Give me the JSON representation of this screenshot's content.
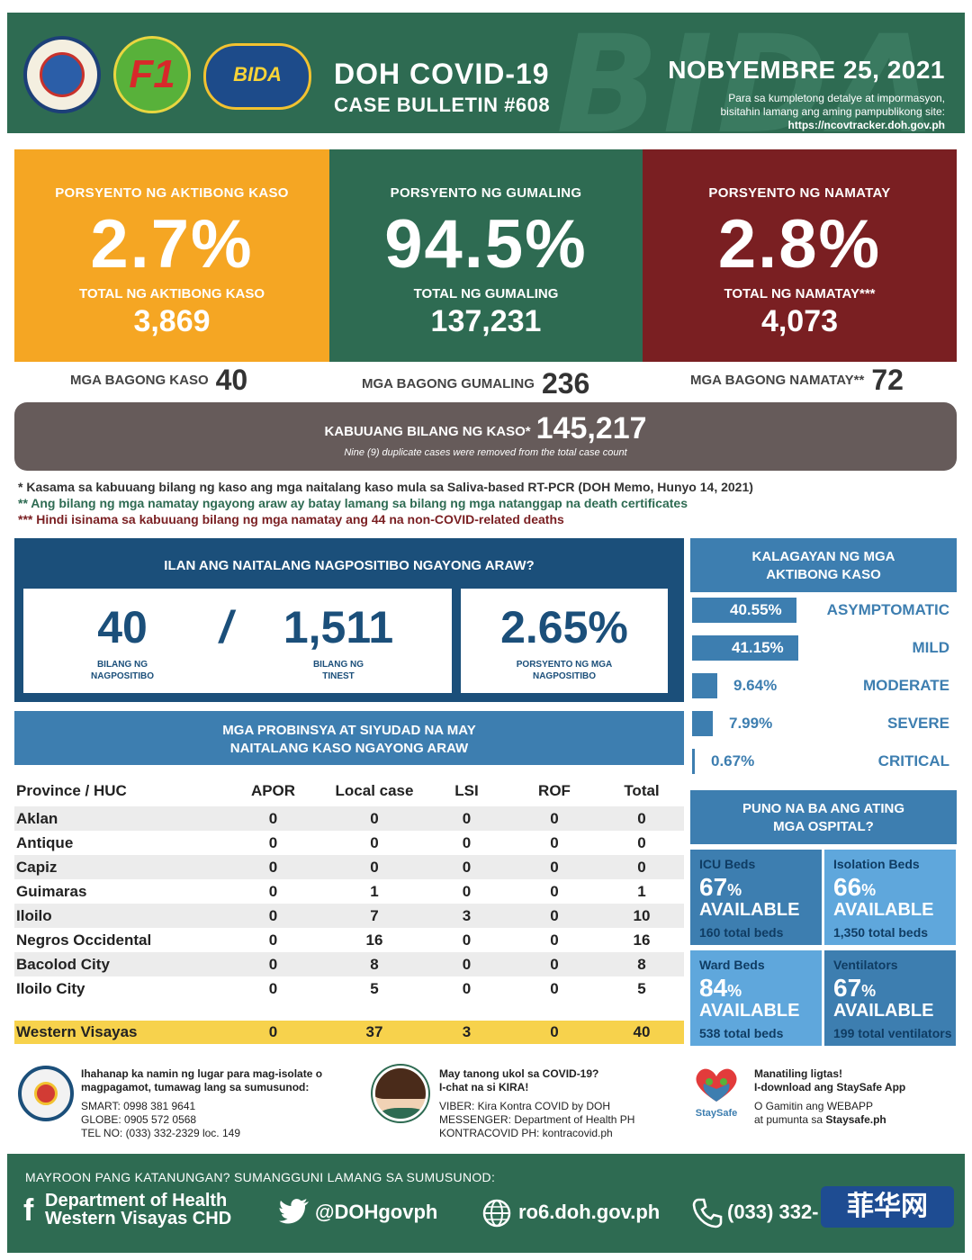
{
  "header": {
    "title_line1": "DOH COVID-19",
    "title_line2": "CASE BULLETIN #608",
    "date": "NOBYEMBRE 25, 2021",
    "note_line1": "Para sa kumpletong detalye at impormasyon,",
    "note_line2": "bisitahin lamang ang aming pampublikong site:",
    "site": "https://ncovtracker.doh.gov.ph",
    "bg_word": "BIDA",
    "logo_f1": "F1",
    "logo_bida": "BIDA"
  },
  "stats": {
    "active": {
      "label": "PORSYENTO NG AKTIBONG KASO",
      "pct": "2.7%",
      "sublabel": "TOTAL  NG AKTIBONG KASO",
      "total": "3,869",
      "color": "#f5a623"
    },
    "recovered": {
      "label": "PORSYENTO NG GUMALING",
      "pct": "94.5%",
      "sublabel": "TOTAL  NG GUMALING",
      "total": "137,231",
      "color": "#2e6b52"
    },
    "deaths": {
      "label": "PORSYENTO NG NAMATAY",
      "pct": "2.8%",
      "sublabel": "TOTAL  NG NAMATAY***",
      "total": "4,073",
      "color": "#7a1f22"
    }
  },
  "new": {
    "cases_label": "MGA BAGONG KASO",
    "cases": "40",
    "recovered_label": "MGA BAGONG GUMALING",
    "recovered": "236",
    "deaths_label": "MGA BAGONG NAMATAY**",
    "deaths": "72"
  },
  "total": {
    "label": "KABUUANG BILANG NG KASO*",
    "value": "145,217",
    "note": "Nine (9) duplicate cases were removed from the total case count"
  },
  "footnotes": {
    "fn1": "* Kasama sa kabuuang bilang ng kaso ang mga naitalang kaso mula sa Saliva-based RT-PCR (DOH Memo, Hunyo 14, 2021)",
    "fn2": "** Ang bilang ng mga namatay ngayong araw ay batay lamang sa bilang ng mga natanggap na death certificates",
    "fn3": "*** Hindi isinama sa kabuuang bilang ng mga namatay ang 44 na non-COVID-related deaths"
  },
  "positive": {
    "title": "ILAN ANG NAITALANG NAGPOSITIBO NGAYONG ARAW?",
    "positive_count": "40",
    "positive_label_1": "BILANG NG",
    "positive_label_2": "NAGPOSITIBO",
    "slash": "/",
    "tested_count": "1,511",
    "tested_label_1": "BILANG NG",
    "tested_label_2": "TINEST",
    "rate": "2.65%",
    "rate_label_1": "PORSYENTO NG MGA",
    "rate_label_2": "NAGPOSITIBO"
  },
  "provinces": {
    "title_line1": "MGA PROBINSYA AT SIYUDAD NA MAY",
    "title_line2": "NAITALANG KASO NGAYONG ARAW",
    "columns": [
      "Province / HUC",
      "APOR",
      "Local case",
      "LSI",
      "ROF",
      "Total"
    ],
    "rows": [
      [
        "Aklan",
        "0",
        "0",
        "0",
        "0",
        "0"
      ],
      [
        "Antique",
        "0",
        "0",
        "0",
        "0",
        "0"
      ],
      [
        "Capiz",
        "0",
        "0",
        "0",
        "0",
        "0"
      ],
      [
        "Guimaras",
        "0",
        "1",
        "0",
        "0",
        "1"
      ],
      [
        "Iloilo",
        "0",
        "7",
        "3",
        "0",
        "10"
      ],
      [
        "Negros Occidental",
        "0",
        "16",
        "0",
        "0",
        "16"
      ],
      [
        "Bacolod City",
        "0",
        "8",
        "0",
        "0",
        "8"
      ],
      [
        "Iloilo City",
        "0",
        "5",
        "0",
        "0",
        "5"
      ]
    ],
    "region": [
      "Western Visayas",
      "0",
      "37",
      "3",
      "0",
      "40"
    ]
  },
  "status": {
    "title_line1": "KALAGAYAN NG MGA",
    "title_line2": "AKTIBONG KASO",
    "items": [
      {
        "pct": "40.55%",
        "name": "ASYMPTOMATIC",
        "value": 40.55
      },
      {
        "pct": "41.15%",
        "name": "MILD",
        "value": 41.15
      },
      {
        "pct": "9.64%",
        "name": "MODERATE",
        "value": 9.64
      },
      {
        "pct": "7.99%",
        "name": "SEVERE",
        "value": 7.99
      },
      {
        "pct": "0.67%",
        "name": "CRITICAL",
        "value": 0.67
      }
    ]
  },
  "hospital": {
    "title_line1": "PUNO NA BA ANG ATING",
    "title_line2": "MGA OSPITAL?",
    "available_label": "AVAILABLE",
    "pct_sign": "%",
    "beds": [
      {
        "title": "ICU Beds",
        "pct": "67",
        "total": "160 total beds",
        "color": "#3d7eb0"
      },
      {
        "title": "Isolation Beds",
        "pct": "66",
        "total": "1,350 total beds",
        "color": "#5fa7dc"
      },
      {
        "title": "Ward Beds",
        "pct": "84",
        "total": "538  total beds",
        "color": "#5fa7dc"
      },
      {
        "title": "Ventilators",
        "pct": "67",
        "total": "199 total ventilators",
        "color": "#3d7eb0"
      }
    ]
  },
  "contacts": {
    "isolate_line1": "Ihahanap ka namin ng lugar para mag-isolate o",
    "isolate_line2": "magpagamot, tumawag lang sa sumusunod:",
    "smart": "SMART: 0998 381 9641",
    "globe": "GLOBE:  0905 572 0568",
    "tel": "TEL NO: (033) 332-2329 loc. 149",
    "kira_line1": "May tanong ukol sa COVID-19?",
    "kira_line2": "I-chat na si KIRA!",
    "viber": "VIBER: Kira Kontra COVID by DOH",
    "messenger": "MESSENGER: Department of Health PH",
    "kontracovid": "KONTRACOVID PH: kontracovid.ph",
    "staysafe_line1": "Manatiling ligtas!",
    "staysafe_line2": "I-download ang StaySafe App",
    "staysafe_line3": "O Gamitin ang WEBAPP",
    "staysafe_line4_pre": "at pumunta sa",
    "staysafe_line4_link": "Staysafe.ph",
    "staysafe_logo": "StaySafe"
  },
  "footer": {
    "question": "MAYROON PANG KATANUNGAN? SUMANGGUNI LAMANG SA SUMUSUNOD:",
    "fb_line1": "Department of Health",
    "fb_line2": "Western Visayas CHD",
    "twitter": "@DOHgovph",
    "web": "ro6.doh.gov.ph",
    "phone": "(033) 332-",
    "watermark": "菲华网"
  }
}
